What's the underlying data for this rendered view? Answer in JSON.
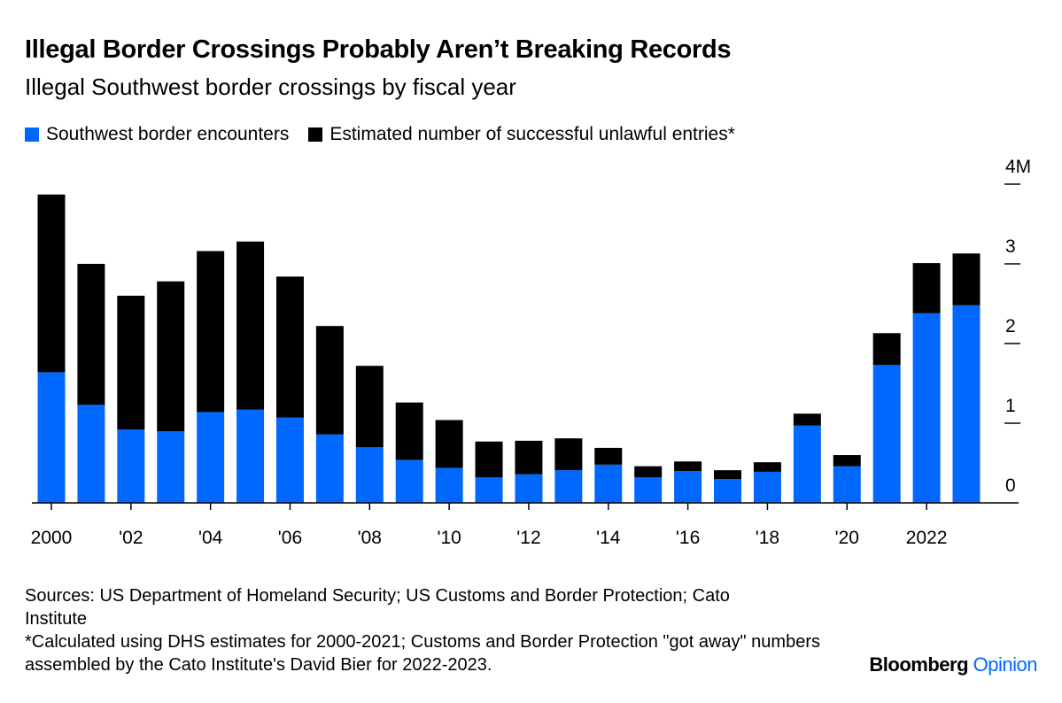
{
  "title": "Illegal Border Crossings Probably Aren’t Breaking Records",
  "subtitle": "Illegal Southwest border crossings by fiscal year",
  "colors": {
    "encounters": "#0068ff",
    "entries": "#000000"
  },
  "chart_data": {
    "type": "bar",
    "stacked": true,
    "title": "Illegal Border Crossings Probably Aren’t Breaking Records",
    "subtitle": "Illegal Southwest border crossings by fiscal year",
    "x": [
      2000,
      2001,
      2002,
      2003,
      2004,
      2005,
      2006,
      2007,
      2008,
      2009,
      2010,
      2011,
      2012,
      2013,
      2014,
      2015,
      2016,
      2017,
      2018,
      2019,
      2020,
      2021,
      2022,
      2023
    ],
    "series": [
      {
        "name": "Southwest border encounters",
        "values": [
          1.64,
          1.23,
          0.92,
          0.9,
          1.14,
          1.17,
          1.07,
          0.86,
          0.7,
          0.54,
          0.44,
          0.32,
          0.36,
          0.41,
          0.48,
          0.32,
          0.4,
          0.3,
          0.39,
          0.97,
          0.46,
          1.73,
          2.38,
          2.48
        ]
      },
      {
        "name": "Estimated number of successful unlawful entries*",
        "values": [
          2.23,
          1.77,
          1.68,
          1.88,
          2.02,
          2.11,
          1.77,
          1.36,
          1.02,
          0.72,
          0.6,
          0.45,
          0.42,
          0.4,
          0.21,
          0.14,
          0.12,
          0.11,
          0.12,
          0.15,
          0.14,
          0.4,
          0.63,
          0.65
        ]
      }
    ],
    "ylim": [
      0,
      4
    ],
    "yticks": [
      {
        "v": 0,
        "label": "0"
      },
      {
        "v": 1,
        "label": "1"
      },
      {
        "v": 2,
        "label": "2"
      },
      {
        "v": 3,
        "label": "3"
      },
      {
        "v": 4,
        "label": "4M"
      }
    ],
    "xticks": [
      {
        "v": 2000,
        "label": "2000"
      },
      {
        "v": 2002,
        "label": "'02"
      },
      {
        "v": 2004,
        "label": "'04"
      },
      {
        "v": 2006,
        "label": "'06"
      },
      {
        "v": 2008,
        "label": "'08"
      },
      {
        "v": 2010,
        "label": "'10"
      },
      {
        "v": 2012,
        "label": "'12"
      },
      {
        "v": 2014,
        "label": "'14"
      },
      {
        "v": 2016,
        "label": "'16"
      },
      {
        "v": 2018,
        "label": "'18"
      },
      {
        "v": 2020,
        "label": "'20"
      },
      {
        "v": 2022,
        "label": "2022"
      }
    ],
    "legend": "top-left",
    "grid": false
  },
  "footnotes": {
    "sources": "Sources: US Department of Homeland Security; US Customs and Border Protection; Cato Institute",
    "note": "*Calculated using DHS estimates for 2000-2021; Customs and Border Protection \"got away\" numbers assembled by the Cato Institute's David Bier for 2022-2023."
  },
  "brand": {
    "name": "Bloomberg",
    "suffix": "Opinion"
  }
}
